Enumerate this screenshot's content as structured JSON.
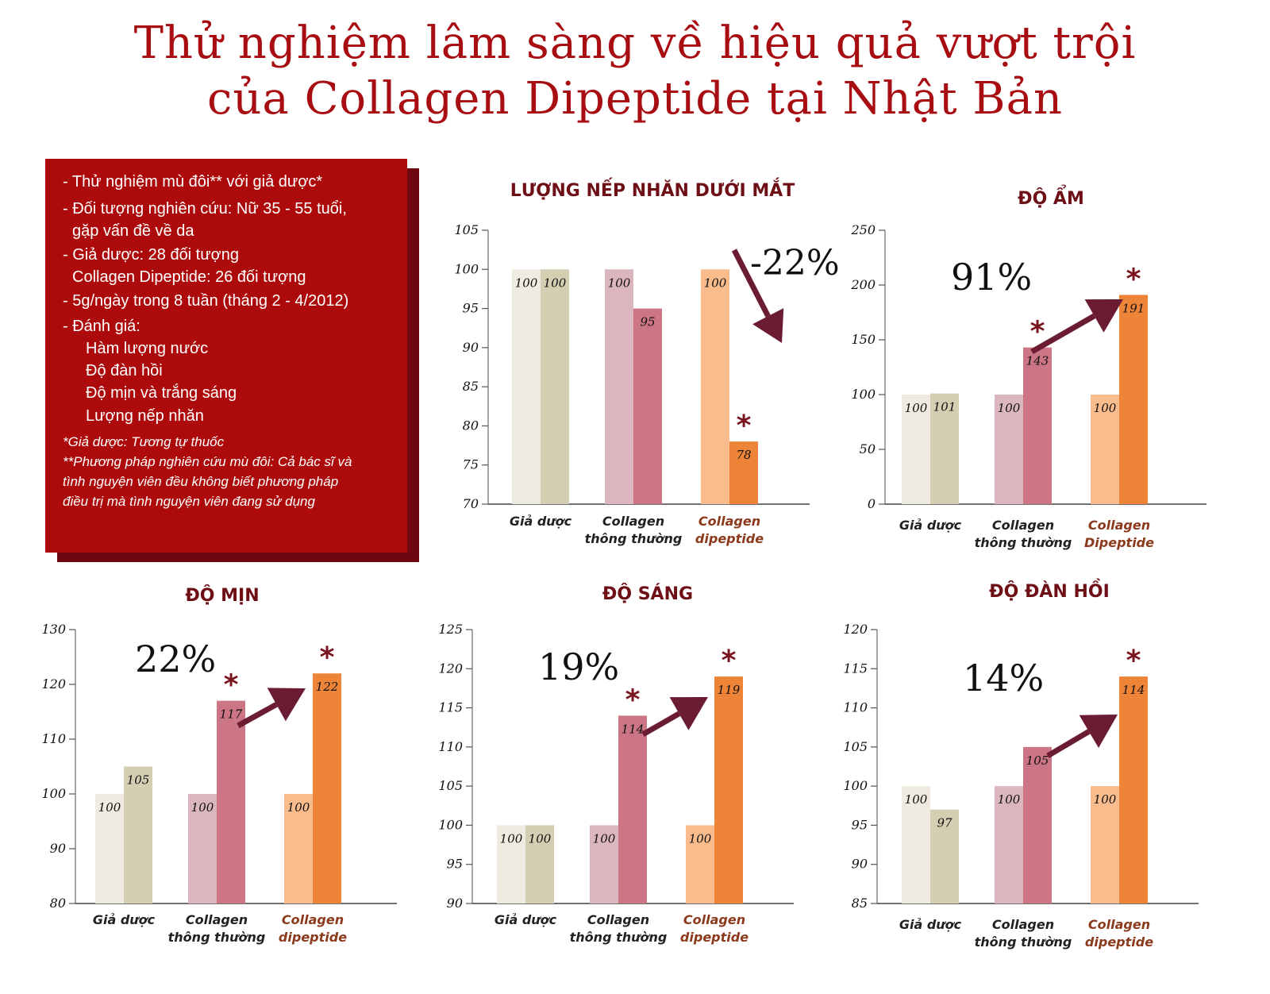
{
  "title": {
    "line1": "Thử nghiệm lâm sàng về hiệu quả vượt trội",
    "line2": "của Collagen Dipeptide tại Nhật Bản"
  },
  "info_box": {
    "lines": [
      "- Thử nghiệm mù đôi** với giả dược*",
      "- Đối tượng nghiên cứu: Nữ 35 - 55 tuổi,",
      "gặp vấn đề về da",
      "- Giả dược: 28 đối tượng",
      "Collagen Dipeptide: 26 đối tượng",
      "- 5g/ngày trong 8 tuần (tháng 2 - 4/2012)",
      "- Đánh giá:",
      "Hàm lượng nước",
      "Độ đàn hồi",
      "Độ mịn và trắng sáng",
      "Lượng nếp nhăn"
    ],
    "notes": [
      "*Giả dược: Tương tự thuốc",
      "**Phương pháp nghiên cứu mù đôi: Cả bác sĩ và",
      "tình nguyện viên đều không biết phương pháp",
      "điều trị mà tình nguyện viên đang sử dụng"
    ]
  },
  "colors": {
    "title": "#a80d12",
    "box": "#ad0b0b",
    "placebo_before": "#f0ebe0",
    "placebo_after": "#d4ceb3",
    "collagen_before": "#dcb6be",
    "collagen_after": "#cb7585",
    "dipeptide_before": "#fbbc8d",
    "dipeptide_after": "#ee8437",
    "arrow": "#6b1c32",
    "category_dark": "#222222",
    "category_accent": "#8c3a1c"
  },
  "chart_data": [
    {
      "id": "wrinkle",
      "type": "bar",
      "title": "LƯỢNG NẾP NHĂN DƯỚI MẮT",
      "yticks": [
        70,
        75,
        80,
        85,
        90,
        95,
        100,
        105
      ],
      "ylim": [
        70,
        105
      ],
      "categories": [
        "Giả dược",
        "Collagen\nthông thường",
        "Collagen\ndipeptide"
      ],
      "pairs": [
        [
          100,
          100
        ],
        [
          100,
          95
        ],
        [
          100,
          78
        ]
      ],
      "percent_label": "-22%",
      "star_on": [
        2
      ]
    },
    {
      "id": "moisture",
      "type": "bar",
      "title": "ĐỘ ẨM",
      "yticks": [
        0,
        50,
        100,
        150,
        200,
        250
      ],
      "ylim": [
        0,
        250
      ],
      "categories": [
        "Giả dược",
        "Collagen\nthông thường",
        "Collagen\nDipeptide"
      ],
      "pairs": [
        [
          100,
          101
        ],
        [
          100,
          143
        ],
        [
          100,
          191
        ]
      ],
      "percent_label": "91%",
      "star_on": [
        1,
        2
      ]
    },
    {
      "id": "smoothness",
      "type": "bar",
      "title": "ĐỘ MỊN",
      "yticks": [
        80,
        90,
        100,
        110,
        120,
        130
      ],
      "ylim": [
        80,
        130
      ],
      "categories": [
        "Giả dược",
        "Collagen\nthông thường",
        "Collagen\ndipeptide"
      ],
      "pairs": [
        [
          100,
          105
        ],
        [
          100,
          117
        ],
        [
          100,
          122
        ]
      ],
      "percent_label": "22%",
      "star_on": [
        1,
        2
      ]
    },
    {
      "id": "brightness",
      "type": "bar",
      "title": "ĐỘ SÁNG",
      "yticks": [
        90,
        95,
        100,
        105,
        110,
        115,
        120,
        125
      ],
      "ylim": [
        90,
        125
      ],
      "categories": [
        "Giả dược",
        "Collagen\nthông thường",
        "Collagen\ndipeptide"
      ],
      "pairs": [
        [
          100,
          100
        ],
        [
          100,
          114
        ],
        [
          100,
          119
        ]
      ],
      "percent_label": "19%",
      "star_on": [
        1,
        2
      ]
    },
    {
      "id": "elasticity",
      "type": "bar",
      "title": "ĐỘ ĐÀN HỒI",
      "yticks": [
        85,
        90,
        95,
        100,
        105,
        110,
        115,
        120
      ],
      "ylim": [
        85,
        120
      ],
      "categories": [
        "Giả dược",
        "Collagen\nthông thường",
        "Collagen\ndipeptide"
      ],
      "pairs": [
        [
          100,
          97
        ],
        [
          100,
          105
        ],
        [
          100,
          114
        ]
      ],
      "percent_label": "14%",
      "star_on": [
        2
      ]
    }
  ]
}
